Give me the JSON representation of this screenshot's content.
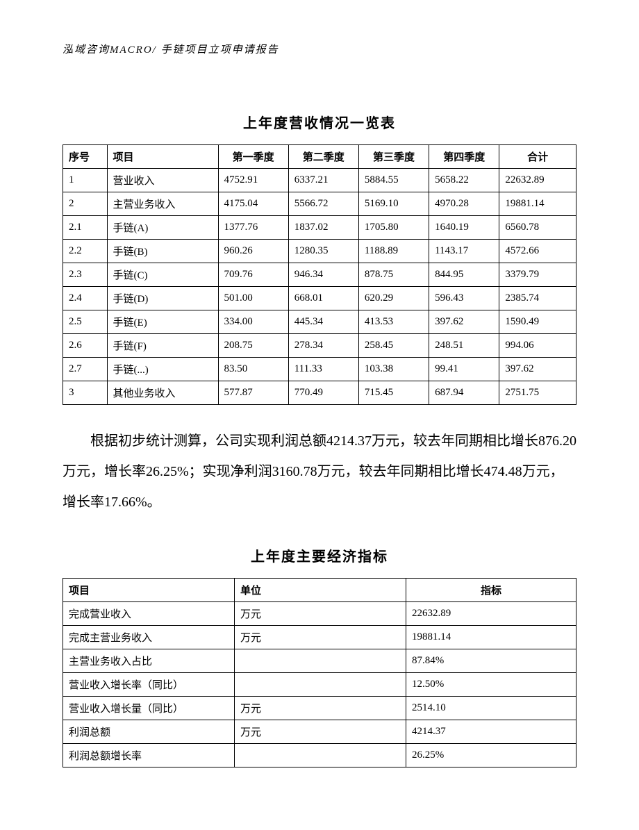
{
  "header": {
    "text": "泓域咨询MACRO/    手链项目立项申请报告"
  },
  "revenueTable": {
    "title": "上年度营收情况一览表",
    "columns": [
      "序号",
      "项目",
      "第一季度",
      "第二季度",
      "第三季度",
      "第四季度",
      "合计"
    ],
    "rows": [
      [
        "1",
        "营业收入",
        "4752.91",
        "6337.21",
        "5884.55",
        "5658.22",
        "22632.89"
      ],
      [
        "2",
        "主营业务收入",
        "4175.04",
        "5566.72",
        "5169.10",
        "4970.28",
        "19881.14"
      ],
      [
        "2.1",
        "手链(A)",
        "1377.76",
        "1837.02",
        "1705.80",
        "1640.19",
        "6560.78"
      ],
      [
        "2.2",
        "手链(B)",
        "960.26",
        "1280.35",
        "1188.89",
        "1143.17",
        "4572.66"
      ],
      [
        "2.3",
        "手链(C)",
        "709.76",
        "946.34",
        "878.75",
        "844.95",
        "3379.79"
      ],
      [
        "2.4",
        "手链(D)",
        "501.00",
        "668.01",
        "620.29",
        "596.43",
        "2385.74"
      ],
      [
        "2.5",
        "手链(E)",
        "334.00",
        "445.34",
        "413.53",
        "397.62",
        "1590.49"
      ],
      [
        "2.6",
        "手链(F)",
        "208.75",
        "278.34",
        "258.45",
        "248.51",
        "994.06"
      ],
      [
        "2.7",
        "手链(...)",
        "83.50",
        "111.33",
        "103.38",
        "99.41",
        "397.62"
      ],
      [
        "3",
        "其他业务收入",
        "577.87",
        "770.49",
        "715.45",
        "687.94",
        "2751.75"
      ]
    ]
  },
  "paragraph": {
    "text": "根据初步统计测算，公司实现利润总额4214.37万元，较去年同期相比增长876.20万元，增长率26.25%；实现净利润3160.78万元，较去年同期相比增长474.48万元，增长率17.66%。"
  },
  "indicatorsTable": {
    "title": "上年度主要经济指标",
    "columns": [
      "项目",
      "单位",
      "指标"
    ],
    "rows": [
      [
        "完成营业收入",
        "万元",
        "22632.89"
      ],
      [
        "完成主营业务收入",
        "万元",
        "19881.14"
      ],
      [
        "主营业务收入占比",
        "",
        "87.84%"
      ],
      [
        "营业收入增长率（同比）",
        "",
        "12.50%"
      ],
      [
        "营业收入增长量（同比）",
        "万元",
        "2514.10"
      ],
      [
        "利润总额",
        "万元",
        "4214.37"
      ],
      [
        "利润总额增长率",
        "",
        "26.25%"
      ]
    ]
  }
}
